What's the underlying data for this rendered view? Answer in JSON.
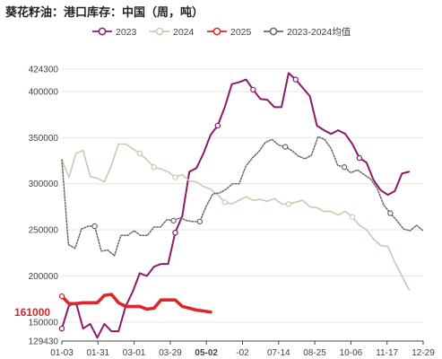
{
  "title": "葵花籽油：港口库存：中国（周，吨）",
  "chart_data": {
    "type": "line",
    "ylim": [
      129430,
      424300
    ],
    "y_ticks": [
      "424300",
      "400000",
      "350000",
      "300000",
      "250000",
      "200000",
      "150000",
      "129430"
    ],
    "x_ticks": [
      "01-03",
      "01-31",
      "03-01",
      "03-29",
      "05-02",
      "-02",
      "07-14",
      "08-25",
      "10-06",
      "11-17",
      "12-29"
    ],
    "highlight_x_label": "05-02",
    "current_value_label": "161000",
    "grid": "horizontal",
    "legend_position": "top",
    "series": [
      {
        "name": "2023",
        "color": "#8b1a6b",
        "values": [
          143000,
          168000,
          171000,
          143000,
          148000,
          133000,
          148000,
          140000,
          140000,
          167000,
          183000,
          203000,
          200000,
          210000,
          213000,
          213000,
          247000,
          265000,
          313000,
          317000,
          333000,
          353000,
          363000,
          383000,
          408000,
          410000,
          413000,
          402000,
          392000,
          391000,
          383000,
          383000,
          420000,
          413000,
          404000,
          395000,
          363000,
          358000,
          354000,
          358000,
          354000,
          343000,
          328000,
          323000,
          304000,
          293000,
          288000,
          292000,
          311000,
          313000
        ]
      },
      {
        "name": "2024",
        "color": "#d2c6b0",
        "values": [
          326000,
          307000,
          333000,
          336000,
          308000,
          306000,
          302000,
          320000,
          343000,
          343000,
          338000,
          333000,
          326000,
          318000,
          316000,
          313000,
          307000,
          310000,
          303000,
          302000,
          297000,
          294000,
          288000,
          280000,
          278000,
          282000,
          286000,
          282000,
          283000,
          281000,
          284000,
          278000,
          278000,
          280000,
          282000,
          275000,
          274000,
          270000,
          270000,
          266000,
          270000,
          264000,
          255000,
          250000,
          240000,
          233000,
          232000,
          215000,
          200000,
          185000
        ]
      },
      {
        "name": "2025",
        "color": "#e0242c",
        "values": [
          178000,
          170000,
          170000,
          171000,
          171000,
          171000,
          179000,
          180000,
          171000,
          167000,
          167000,
          167000,
          164000,
          165000,
          174000,
          174000,
          174000,
          167000,
          165000,
          163000,
          162000,
          161000
        ]
      },
      {
        "name": "2023-2024均值",
        "color": "#666666",
        "values": [
          326000,
          234000,
          230000,
          251000,
          254000,
          254000,
          227000,
          228000,
          222000,
          244000,
          244000,
          249000,
          244000,
          244000,
          253000,
          253000,
          261000,
          260000,
          263000,
          260000,
          259000,
          259000,
          276000,
          289000,
          290000,
          294000,
          300000,
          300000,
          319000,
          328000,
          335000,
          345000,
          348000,
          342000,
          340000,
          336000,
          330000,
          327000,
          331000,
          351000,
          348000,
          338000,
          320000,
          318000,
          312000,
          315000,
          310000,
          305000,
          295000,
          277000,
          268000,
          260000,
          251000,
          249000,
          255000,
          249000
        ]
      }
    ]
  }
}
